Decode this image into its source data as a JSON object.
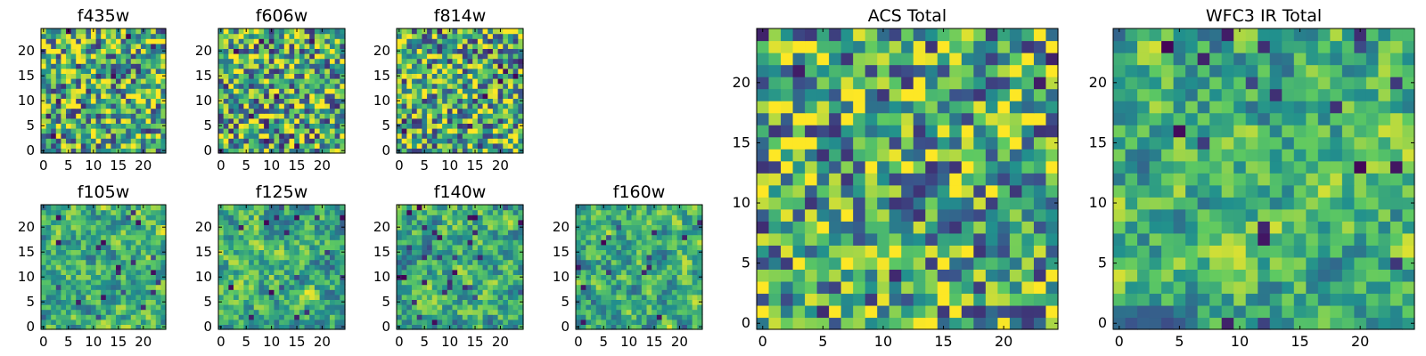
{
  "figure": {
    "background": "#ffffff",
    "colormap": "viridis",
    "colormap_stops": [
      "#440154",
      "#3b528b",
      "#21908d",
      "#5dc962",
      "#fde725"
    ]
  },
  "chart_data": [
    {
      "type": "heatmap",
      "title": "f435w",
      "grid_size": [
        25,
        25
      ],
      "colormap": "viridis",
      "xlim": [
        -0.5,
        24.5
      ],
      "ylim": [
        -0.5,
        24.5
      ],
      "xticks": [
        0,
        5,
        10,
        15,
        20
      ],
      "yticks": [
        0,
        5,
        10,
        15,
        20
      ],
      "xtick_labels": [
        "0",
        "5",
        "10",
        "15",
        "20"
      ],
      "ytick_labels": [
        "0",
        "5",
        "10",
        "15",
        "20"
      ],
      "seed": 11
    },
    {
      "type": "heatmap",
      "title": "f606w",
      "grid_size": [
        25,
        25
      ],
      "colormap": "viridis",
      "xlim": [
        -0.5,
        24.5
      ],
      "ylim": [
        -0.5,
        24.5
      ],
      "xticks": [
        0,
        5,
        10,
        15,
        20
      ],
      "yticks": [
        0,
        5,
        10,
        15,
        20
      ],
      "xtick_labels": [
        "0",
        "5",
        "10",
        "15",
        "20"
      ],
      "ytick_labels": [
        "0",
        "5",
        "10",
        "15",
        "20"
      ],
      "seed": 23
    },
    {
      "type": "heatmap",
      "title": "f814w",
      "grid_size": [
        25,
        25
      ],
      "colormap": "viridis",
      "xlim": [
        -0.5,
        24.5
      ],
      "ylim": [
        -0.5,
        24.5
      ],
      "xticks": [
        0,
        5,
        10,
        15,
        20
      ],
      "yticks": [
        0,
        5,
        10,
        15,
        20
      ],
      "xtick_labels": [
        "0",
        "5",
        "10",
        "15",
        "20"
      ],
      "ytick_labels": [
        "0",
        "5",
        "10",
        "15",
        "20"
      ],
      "seed": 37
    },
    {
      "type": "heatmap",
      "title": "f105w",
      "grid_size": [
        25,
        25
      ],
      "colormap": "viridis",
      "xlim": [
        -0.5,
        24.5
      ],
      "ylim": [
        -0.5,
        24.5
      ],
      "xticks": [
        0,
        5,
        10,
        15,
        20
      ],
      "yticks": [
        0,
        5,
        10,
        15,
        20
      ],
      "xtick_labels": [
        "0",
        "5",
        "10",
        "15",
        "20"
      ],
      "ytick_labels": [
        "0",
        "5",
        "10",
        "15",
        "20"
      ],
      "seed": 41
    },
    {
      "type": "heatmap",
      "title": "f125w",
      "grid_size": [
        25,
        25
      ],
      "colormap": "viridis",
      "xlim": [
        -0.5,
        24.5
      ],
      "ylim": [
        -0.5,
        24.5
      ],
      "xticks": [
        0,
        5,
        10,
        15,
        20
      ],
      "yticks": [
        0,
        5,
        10,
        15,
        20
      ],
      "xtick_labels": [
        "0",
        "5",
        "10",
        "15",
        "20"
      ],
      "ytick_labels": [
        "0",
        "5",
        "10",
        "15",
        "20"
      ],
      "seed": 53
    },
    {
      "type": "heatmap",
      "title": "f140w",
      "grid_size": [
        25,
        25
      ],
      "colormap": "viridis",
      "xlim": [
        -0.5,
        24.5
      ],
      "ylim": [
        -0.5,
        24.5
      ],
      "xticks": [
        0,
        5,
        10,
        15,
        20
      ],
      "yticks": [
        0,
        5,
        10,
        15,
        20
      ],
      "xtick_labels": [
        "0",
        "5",
        "10",
        "15",
        "20"
      ],
      "ytick_labels": [
        "0",
        "5",
        "10",
        "15",
        "20"
      ],
      "seed": 67
    },
    {
      "type": "heatmap",
      "title": "f160w",
      "grid_size": [
        25,
        25
      ],
      "colormap": "viridis",
      "xlim": [
        -0.5,
        24.5
      ],
      "ylim": [
        -0.5,
        24.5
      ],
      "xticks": [
        0,
        5,
        10,
        15,
        20
      ],
      "yticks": [
        0,
        5,
        10,
        15,
        20
      ],
      "xtick_labels": [
        "0",
        "5",
        "10",
        "15",
        "20"
      ],
      "ytick_labels": [
        "0",
        "5",
        "10",
        "15",
        "20"
      ],
      "seed": 79
    },
    {
      "type": "heatmap",
      "title": "ACS Total",
      "grid_size": [
        25,
        25
      ],
      "colormap": "viridis",
      "xlim": [
        -0.5,
        24.5
      ],
      "ylim": [
        -0.5,
        24.5
      ],
      "xticks": [
        0,
        5,
        10,
        15,
        20
      ],
      "yticks": [
        0,
        5,
        10,
        15,
        20
      ],
      "xtick_labels": [
        "0",
        "5",
        "10",
        "15",
        "20"
      ],
      "ytick_labels": [
        "0",
        "5",
        "10",
        "15",
        "20"
      ],
      "seed": 83
    },
    {
      "type": "heatmap",
      "title": "WFC3 IR Total",
      "grid_size": [
        25,
        25
      ],
      "colormap": "viridis",
      "xlim": [
        -0.5,
        24.5
      ],
      "ylim": [
        -0.5,
        24.5
      ],
      "xticks": [
        0,
        5,
        10,
        15,
        20
      ],
      "yticks": [
        0,
        5,
        10,
        15,
        20
      ],
      "xtick_labels": [
        "0",
        "5",
        "10",
        "15",
        "20"
      ],
      "ytick_labels": [
        "0",
        "5",
        "10",
        "15",
        "20"
      ],
      "seed": 97
    }
  ]
}
